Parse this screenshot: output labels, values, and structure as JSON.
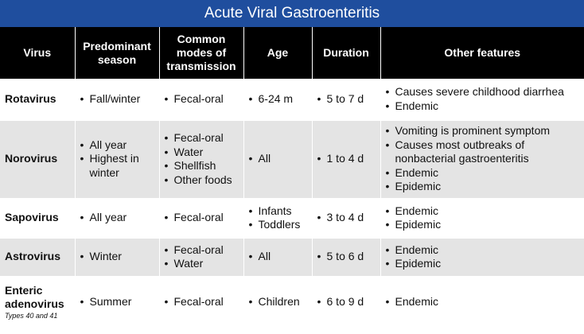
{
  "title": "Acute Viral Gastroenteritis",
  "headers": {
    "virus": "Virus",
    "season": "Predominant season",
    "transmission": "Common modes of transmission",
    "age": "Age",
    "duration": "Duration",
    "features": "Other features"
  },
  "rows": [
    {
      "virus": "Rotavirus",
      "season": [
        "Fall/winter"
      ],
      "transmission": [
        "Fecal-oral"
      ],
      "age": [
        "6-24 m"
      ],
      "duration": [
        "5 to 7 d"
      ],
      "features": [
        "Causes severe childhood diarrhea",
        "Endemic"
      ]
    },
    {
      "virus": "Norovirus",
      "season": [
        "All year",
        "Highest in winter"
      ],
      "transmission": [
        "Fecal-oral",
        "Water",
        "Shellfish",
        "Other foods"
      ],
      "age": [
        "All"
      ],
      "duration": [
        "1 to 4 d"
      ],
      "features": [
        "Vomiting is prominent symptom",
        "Causes most outbreaks of nonbacterial gastroenteritis",
        "Endemic",
        "Epidemic"
      ]
    },
    {
      "virus": "Sapovirus",
      "season": [
        "All year"
      ],
      "transmission": [
        "Fecal-oral"
      ],
      "age": [
        "Infants",
        "Toddlers"
      ],
      "duration": [
        "3 to 4 d"
      ],
      "features": [
        "Endemic",
        "Epidemic"
      ]
    },
    {
      "virus": "Astrovirus",
      "season": [
        "Winter"
      ],
      "transmission": [
        "Fecal-oral",
        "Water"
      ],
      "age": [
        "All"
      ],
      "duration": [
        "5 to 6 d"
      ],
      "features": [
        "Endemic",
        "Epidemic"
      ]
    },
    {
      "virus": "Enteric adenovirus",
      "virus_note": "Types 40 and 41",
      "season": [
        "Summer"
      ],
      "transmission": [
        "Fecal-oral"
      ],
      "age": [
        "Children"
      ],
      "duration": [
        "6 to 9 d"
      ],
      "features": [
        "Endemic"
      ]
    }
  ]
}
